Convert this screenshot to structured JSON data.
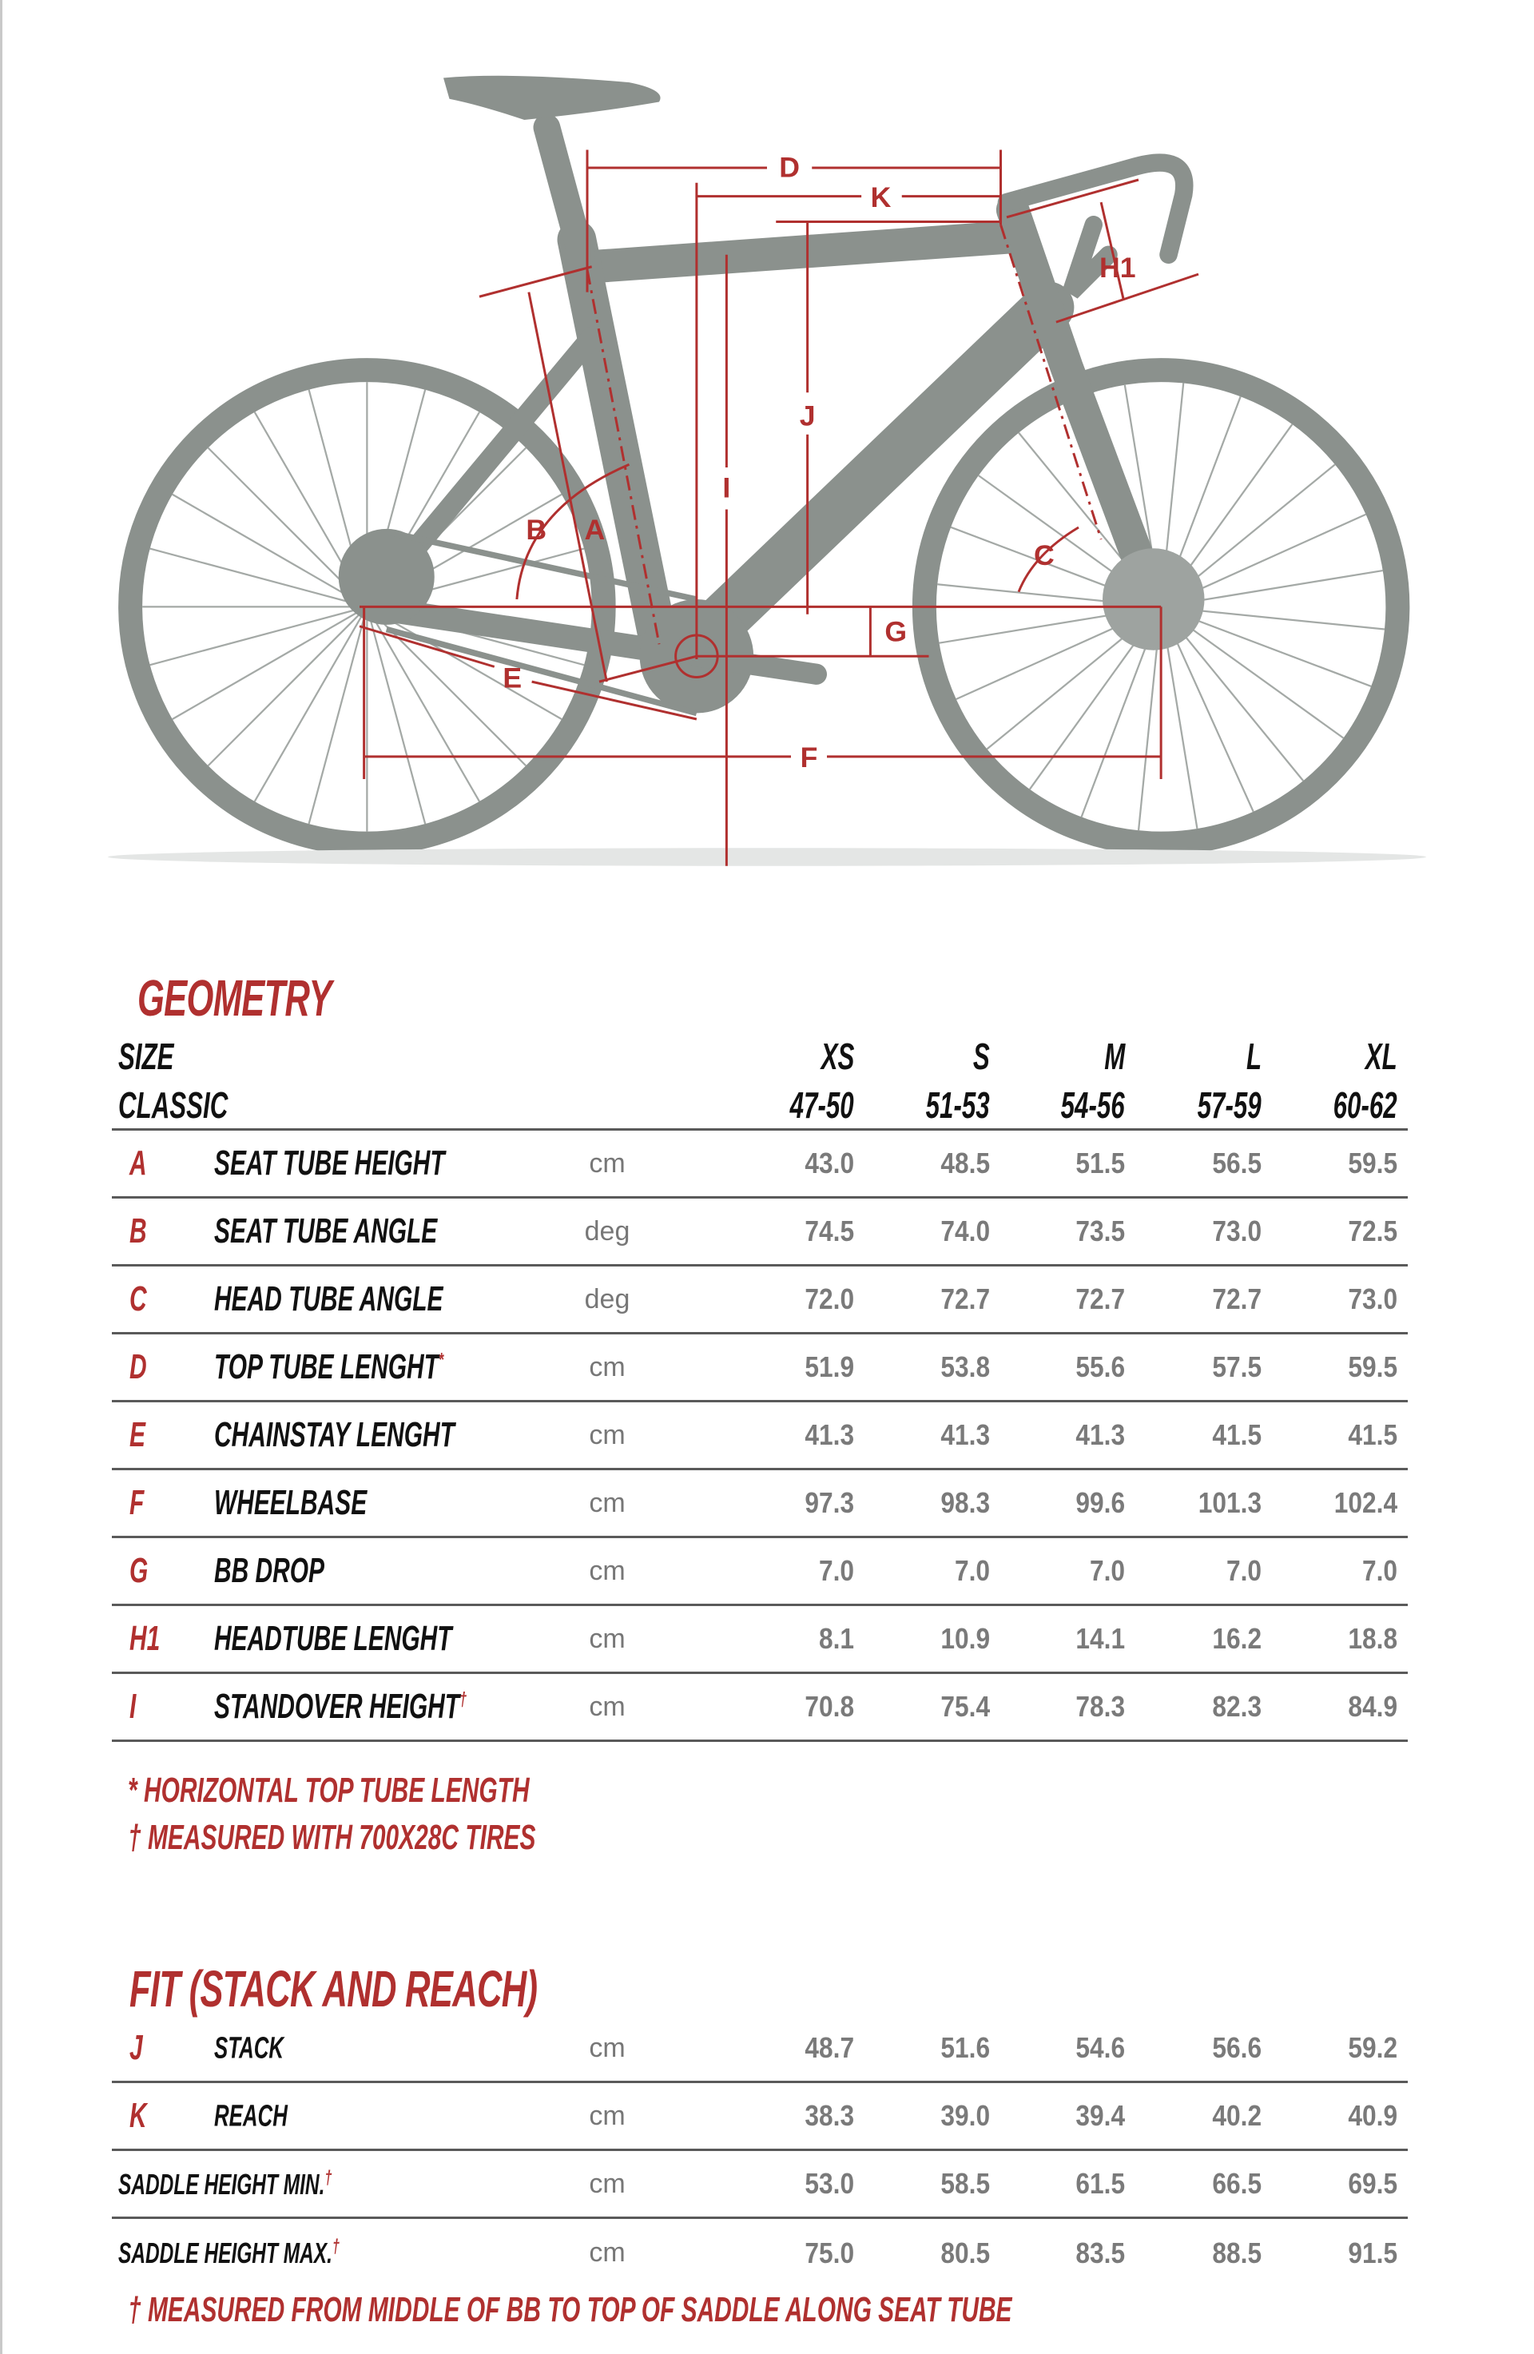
{
  "colors": {
    "accent": "#b0302f",
    "bike": "#8b918d",
    "text": "#111111",
    "values": "#7a7a7a"
  },
  "diagram": {
    "labels": {
      "A": "A",
      "B": "B",
      "C": "C",
      "D": "D",
      "E": "E",
      "F": "F",
      "G": "G",
      "H1": "H1",
      "I": "I",
      "J": "J",
      "K": "K"
    }
  },
  "geometry": {
    "title": "GEOMETRY",
    "size_label": "SIZE",
    "classic_label": "CLASSIC",
    "sizes": [
      "XS",
      "S",
      "M",
      "L",
      "XL"
    ],
    "classic": [
      "47-50",
      "51-53",
      "54-56",
      "57-59",
      "60-62"
    ],
    "rows": [
      {
        "letter": "A",
        "label": "SEAT TUBE HEIGHT",
        "mark": "",
        "unit": "cm",
        "values": [
          "43.0",
          "48.5",
          "51.5",
          "56.5",
          "59.5"
        ]
      },
      {
        "letter": "B",
        "label": "SEAT TUBE ANGLE",
        "mark": "",
        "unit": "deg",
        "values": [
          "74.5",
          "74.0",
          "73.5",
          "73.0",
          "72.5"
        ]
      },
      {
        "letter": "C",
        "label": "HEAD TUBE ANGLE",
        "mark": "",
        "unit": "deg",
        "values": [
          "72.0",
          "72.7",
          "72.7",
          "72.7",
          "73.0"
        ]
      },
      {
        "letter": "D",
        "label": "TOP TUBE LENGHT",
        "mark": "*",
        "unit": "cm",
        "values": [
          "51.9",
          "53.8",
          "55.6",
          "57.5",
          "59.5"
        ]
      },
      {
        "letter": "E",
        "label": "CHAINSTAY LENGHT",
        "mark": "",
        "unit": "cm",
        "values": [
          "41.3",
          "41.3",
          "41.3",
          "41.5",
          "41.5"
        ]
      },
      {
        "letter": "F",
        "label": "WHEELBASE",
        "mark": "",
        "unit": "cm",
        "values": [
          "97.3",
          "98.3",
          "99.6",
          "101.3",
          "102.4"
        ]
      },
      {
        "letter": "G",
        "label": "BB DROP",
        "mark": "",
        "unit": "cm",
        "values": [
          "7.0",
          "7.0",
          "7.0",
          "7.0",
          "7.0"
        ]
      },
      {
        "letter": "H1",
        "label": "HEADTUBE LENGHT",
        "mark": "",
        "unit": "cm",
        "values": [
          "8.1",
          "10.9",
          "14.1",
          "16.2",
          "18.8"
        ]
      },
      {
        "letter": "I",
        "label": "STANDOVER HEIGHT",
        "mark": "†",
        "unit": "cm",
        "values": [
          "70.8",
          "75.4",
          "78.3",
          "82.3",
          "84.9"
        ]
      }
    ],
    "notes": [
      "* HORIZONTAL TOP TUBE LENGTH",
      "† MEASURED WITH 700X28C TIRES"
    ]
  },
  "fit": {
    "title": "FIT (STACK AND REACH)",
    "rows": [
      {
        "letter": "J",
        "label": "STACK",
        "mark": "",
        "unit": "cm",
        "values": [
          "48.7",
          "51.6",
          "54.6",
          "56.6",
          "59.2"
        ]
      },
      {
        "letter": "K",
        "label": "REACH",
        "mark": "",
        "unit": "cm",
        "values": [
          "38.3",
          "39.0",
          "39.4",
          "40.2",
          "40.9"
        ]
      },
      {
        "letter": "",
        "label": "SADDLE HEIGHT MIN.",
        "mark": "†",
        "unit": "cm",
        "values": [
          "53.0",
          "58.5",
          "61.5",
          "66.5",
          "69.5"
        ]
      },
      {
        "letter": "",
        "label": "SADDLE HEIGHT MAX.",
        "mark": "†",
        "unit": "cm",
        "values": [
          "75.0",
          "80.5",
          "83.5",
          "88.5",
          "91.5"
        ]
      }
    ],
    "note": "† MEASURED FROM MIDDLE OF BB TO TOP OF SADDLE ALONG SEAT TUBE"
  }
}
